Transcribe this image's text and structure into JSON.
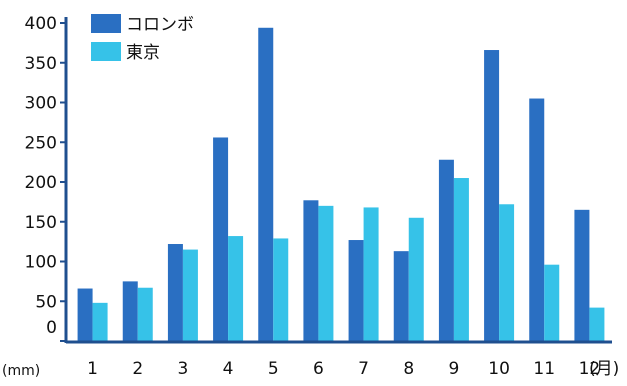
{
  "chart_data": {
    "type": "bar",
    "categories": [
      "1",
      "2",
      "3",
      "4",
      "5",
      "6",
      "7",
      "8",
      "9",
      "10",
      "11",
      "12"
    ],
    "series": [
      {
        "name": "コロンボ",
        "values": [
          66,
          75,
          122,
          256,
          394,
          177,
          127,
          113,
          228,
          366,
          305,
          165
        ]
      },
      {
        "name": "東京",
        "values": [
          48,
          67,
          115,
          132,
          129,
          170,
          168,
          155,
          205,
          172,
          96,
          42
        ]
      }
    ],
    "ylim": [
      0,
      400
    ],
    "yticks": [
      0,
      50,
      100,
      150,
      200,
      250,
      300,
      350,
      400
    ],
    "ylabel": "(mm)",
    "xunit": "(月)",
    "grid": false,
    "legend": "top-left",
    "colors": {
      "コロンボ": "#2a6fc2",
      "東京": "#36c2e8",
      "axis": "#1f4f8f"
    }
  }
}
